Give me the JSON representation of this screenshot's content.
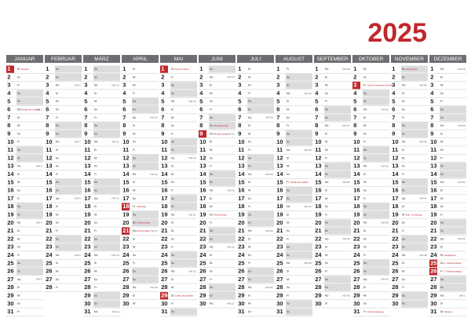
{
  "year": "2025",
  "weekend": [
    "Sa",
    "So"
  ],
  "months": [
    {
      "name": "JANUAR",
      "days": [
        1,
        2,
        3,
        4,
        5,
        6,
        7,
        8,
        9,
        10,
        11,
        12,
        13,
        14,
        15,
        16,
        17,
        18,
        19,
        20,
        21,
        22,
        23,
        24,
        25,
        26,
        27,
        28,
        29,
        30,
        31
      ],
      "weekdays": [
        "Mi",
        "Do",
        "Fr",
        "Sa",
        "So",
        "Mo",
        "Di",
        "Mi",
        "Do",
        "Fr",
        "Sa",
        "So",
        "Mo",
        "Di",
        "Mi",
        "Do",
        "Fr",
        "Sa",
        "So",
        "Mo",
        "Di",
        "Mi",
        "Do",
        "Fr",
        "Sa",
        "So",
        "Mo",
        "Di",
        "Mi",
        "Do",
        "Fr"
      ],
      "weeks": {
        "6": "KW 2",
        "13": "KW 3",
        "20": "KW 4",
        "27": "KW 5"
      },
      "notes": {
        "1": "Neujahr",
        "6": "Heilige Drei Könige"
      },
      "red": [
        1
      ]
    },
    {
      "name": "FEBRUAR",
      "days": [
        1,
        2,
        3,
        4,
        5,
        6,
        7,
        8,
        9,
        10,
        11,
        12,
        13,
        14,
        15,
        16,
        17,
        18,
        19,
        20,
        21,
        22,
        23,
        24,
        25,
        26,
        27,
        28
      ],
      "weekdays": [
        "Sa",
        "So",
        "Mo",
        "Di",
        "Mi",
        "Do",
        "Fr",
        "Sa",
        "So",
        "Mo",
        "Di",
        "Mi",
        "Do",
        "Fr",
        "Sa",
        "So",
        "Mo",
        "Di",
        "Mi",
        "Do",
        "Fr",
        "Sa",
        "So",
        "Mo",
        "Di",
        "Mi",
        "Do",
        "Fr"
      ],
      "weeks": {
        "3": "KW 6",
        "10": "KW 7",
        "17": "KW 8",
        "24": "KW 9"
      },
      "notes": {},
      "red": []
    },
    {
      "name": "MÄRZ",
      "days": [
        1,
        2,
        3,
        4,
        5,
        6,
        7,
        8,
        9,
        10,
        11,
        12,
        13,
        14,
        15,
        16,
        17,
        18,
        19,
        20,
        21,
        22,
        23,
        24,
        25,
        26,
        27,
        28,
        29,
        30,
        31
      ],
      "weekdays": [
        "Sa",
        "So",
        "Mo",
        "Di",
        "Mi",
        "Do",
        "Fr",
        "Sa",
        "So",
        "Mo",
        "Di",
        "Mi",
        "Do",
        "Fr",
        "Sa",
        "So",
        "Mo",
        "Di",
        "Mi",
        "Do",
        "Fr",
        "Sa",
        "So",
        "Mo",
        "Di",
        "Mi",
        "Do",
        "Fr",
        "Sa",
        "So",
        "Mo"
      ],
      "weeks": {
        "3": "KW 10",
        "10": "KW 11",
        "17": "KW 12",
        "24": "KW 13",
        "31": "KW 14"
      },
      "notes": {},
      "red": []
    },
    {
      "name": "APRIL",
      "days": [
        1,
        2,
        3,
        4,
        5,
        6,
        7,
        8,
        9,
        10,
        11,
        12,
        13,
        14,
        15,
        16,
        17,
        18,
        19,
        20,
        21,
        22,
        23,
        24,
        25,
        26,
        27,
        28,
        29,
        30
      ],
      "weekdays": [
        "Di",
        "Mi",
        "Do",
        "Fr",
        "Sa",
        "So",
        "Mo",
        "Di",
        "Mi",
        "Do",
        "Fr",
        "Sa",
        "So",
        "Mo",
        "Di",
        "Mi",
        "Do",
        "Fr",
        "Sa",
        "So",
        "Mo",
        "Di",
        "Mi",
        "Do",
        "Fr",
        "Sa",
        "So",
        "Mo",
        "Di",
        "Mi"
      ],
      "weeks": {
        "7": "KW 15",
        "14": "KW 16",
        "21": "KW 17",
        "28": "KW 18"
      },
      "notes": {
        "18": "Karfreitag",
        "20": "Ostersonntag",
        "21": "Ostermontag"
      },
      "red": [
        18,
        21
      ]
    },
    {
      "name": "MAI",
      "days": [
        1,
        2,
        3,
        4,
        5,
        6,
        7,
        8,
        9,
        10,
        11,
        12,
        13,
        14,
        15,
        16,
        17,
        18,
        19,
        20,
        21,
        22,
        23,
        24,
        25,
        26,
        27,
        28,
        29,
        30,
        31
      ],
      "weekdays": [
        "Do",
        "Fr",
        "Sa",
        "So",
        "Mo",
        "Di",
        "Mi",
        "Do",
        "Fr",
        "Sa",
        "So",
        "Mo",
        "Di",
        "Mi",
        "Do",
        "Fr",
        "Sa",
        "So",
        "Mo",
        "Di",
        "Mi",
        "Do",
        "Fr",
        "Sa",
        "So",
        "Mo",
        "Di",
        "Mi",
        "Do",
        "Fr",
        "Sa"
      ],
      "weeks": {
        "5": "KW 19",
        "12": "KW 20",
        "19": "KW 21",
        "26": "KW 22"
      },
      "notes": {
        "1": "Tag der Arbeit",
        "29": "Christi Himmelfahrt"
      },
      "red": [
        1,
        29
      ]
    },
    {
      "name": "JUNI",
      "days": [
        1,
        2,
        3,
        4,
        5,
        6,
        7,
        8,
        9,
        10,
        11,
        12,
        13,
        14,
        15,
        16,
        17,
        18,
        19,
        20,
        21,
        22,
        23,
        24,
        25,
        26,
        27,
        28,
        29,
        30
      ],
      "weekdays": [
        "So",
        "Mo",
        "Di",
        "Mi",
        "Do",
        "Fr",
        "Sa",
        "So",
        "Mo",
        "Di",
        "Mi",
        "Do",
        "Fr",
        "Sa",
        "So",
        "Mo",
        "Di",
        "Mi",
        "Do",
        "Fr",
        "Sa",
        "So",
        "Mo",
        "Di",
        "Mi",
        "Do",
        "Fr",
        "Sa",
        "So",
        "Mo"
      ],
      "weeks": {
        "2": "KW 23",
        "9": "KW 24",
        "16": "KW 25",
        "23": "KW 26",
        "30": "KW 27"
      },
      "notes": {
        "8": "Pfingstsonntag",
        "9": "Pfingstmontag",
        "19": "Fronleichnam"
      },
      "red": [
        9
      ]
    },
    {
      "name": "JULI",
      "days": [
        1,
        2,
        3,
        4,
        5,
        6,
        7,
        8,
        9,
        10,
        11,
        12,
        13,
        14,
        15,
        16,
        17,
        18,
        19,
        20,
        21,
        22,
        23,
        24,
        25,
        26,
        27,
        28,
        29,
        30,
        31
      ],
      "weekdays": [
        "Di",
        "Mi",
        "Do",
        "Fr",
        "Sa",
        "So",
        "Mo",
        "Di",
        "Mi",
        "Do",
        "Fr",
        "Sa",
        "So",
        "Mo",
        "Di",
        "Mi",
        "Do",
        "Fr",
        "Sa",
        "So",
        "Mo",
        "Di",
        "Mi",
        "Do",
        "Fr",
        "Sa",
        "So",
        "Mo",
        "Di",
        "Mi",
        "Do"
      ],
      "weeks": {
        "7": "KW 28",
        "14": "KW 29",
        "21": "KW 30",
        "28": "KW 31"
      },
      "notes": {},
      "red": []
    },
    {
      "name": "AUGUST",
      "days": [
        1,
        2,
        3,
        4,
        5,
        6,
        7,
        8,
        9,
        10,
        11,
        12,
        13,
        14,
        15,
        16,
        17,
        18,
        19,
        20,
        21,
        22,
        23,
        24,
        25,
        26,
        27,
        28,
        29,
        30,
        31
      ],
      "weekdays": [
        "Fr",
        "Sa",
        "So",
        "Mo",
        "Di",
        "Mi",
        "Do",
        "Fr",
        "Sa",
        "So",
        "Mo",
        "Di",
        "Mi",
        "Do",
        "Fr",
        "Sa",
        "So",
        "Mo",
        "Di",
        "Mi",
        "Do",
        "Fr",
        "Sa",
        "So",
        "Mo",
        "Di",
        "Mi",
        "Do",
        "Fr",
        "Sa",
        "So"
      ],
      "weeks": {
        "4": "KW 32",
        "11": "KW 33",
        "18": "KW 34",
        "25": "KW 35"
      },
      "notes": {
        "15": "Mariä Himmelfahrt"
      },
      "red": []
    },
    {
      "name": "SEPTEMBER",
      "days": [
        1,
        2,
        3,
        4,
        5,
        6,
        7,
        8,
        9,
        10,
        11,
        12,
        13,
        14,
        15,
        16,
        17,
        18,
        19,
        20,
        21,
        22,
        23,
        24,
        25,
        26,
        27,
        28,
        29,
        30
      ],
      "weekdays": [
        "Mo",
        "Di",
        "Mi",
        "Do",
        "Fr",
        "Sa",
        "So",
        "Mo",
        "Di",
        "Mi",
        "Do",
        "Fr",
        "Sa",
        "So",
        "Mo",
        "Di",
        "Mi",
        "Do",
        "Fr",
        "Sa",
        "So",
        "Mo",
        "Di",
        "Mi",
        "Do",
        "Fr",
        "Sa",
        "So",
        "Mo",
        "Di"
      ],
      "weeks": {
        "1": "KW 36",
        "8": "KW 37",
        "15": "KW 38",
        "22": "KW 39",
        "29": "KW 40"
      },
      "notes": {},
      "red": []
    },
    {
      "name": "OKTOBER",
      "days": [
        1,
        2,
        3,
        4,
        5,
        6,
        7,
        8,
        9,
        10,
        11,
        12,
        13,
        14,
        15,
        16,
        17,
        18,
        19,
        20,
        21,
        22,
        23,
        24,
        25,
        26,
        27,
        28,
        29,
        30,
        31
      ],
      "weekdays": [
        "Mi",
        "Do",
        "Fr",
        "Sa",
        "So",
        "Mo",
        "Di",
        "Mi",
        "Do",
        "Fr",
        "Sa",
        "So",
        "Mo",
        "Di",
        "Mi",
        "Do",
        "Fr",
        "Sa",
        "So",
        "Mo",
        "Di",
        "Mi",
        "Do",
        "Fr",
        "Sa",
        "So",
        "Mo",
        "Di",
        "Mi",
        "Do",
        "Fr"
      ],
      "weeks": {
        "6": "KW 41",
        "13": "KW 42",
        "20": "KW 43",
        "27": "KW 44"
      },
      "notes": {
        "3": "Tag der Deutschen Einheit",
        "31": "Reformationstag"
      },
      "red": [
        3
      ]
    },
    {
      "name": "NOVEMBER",
      "days": [
        1,
        2,
        3,
        4,
        5,
        6,
        7,
        8,
        9,
        10,
        11,
        12,
        13,
        14,
        15,
        16,
        17,
        18,
        19,
        20,
        21,
        22,
        23,
        24,
        25,
        26,
        27,
        28,
        29,
        30
      ],
      "weekdays": [
        "Sa",
        "So",
        "Mo",
        "Di",
        "Mi",
        "Do",
        "Fr",
        "Sa",
        "So",
        "Mo",
        "Di",
        "Mi",
        "Do",
        "Fr",
        "Sa",
        "So",
        "Mo",
        "Di",
        "Mi",
        "Do",
        "Fr",
        "Sa",
        "So",
        "Mo",
        "Di",
        "Mi",
        "Do",
        "Fr",
        "Sa",
        "So"
      ],
      "weeks": {
        "3": "KW 45",
        "10": "KW 46",
        "17": "KW 47",
        "24": "KW 48"
      },
      "notes": {
        "1": "Allerheiligen",
        "19": "Buß- und Bettag"
      },
      "red": []
    },
    {
      "name": "DEZEMBER",
      "days": [
        1,
        2,
        3,
        4,
        5,
        6,
        7,
        8,
        9,
        10,
        11,
        12,
        13,
        14,
        15,
        16,
        17,
        18,
        19,
        20,
        21,
        22,
        23,
        24,
        25,
        26,
        27,
        28,
        29,
        30,
        31
      ],
      "weekdays": [
        "Mo",
        "Di",
        "Mi",
        "Do",
        "Fr",
        "Sa",
        "So",
        "Mo",
        "Di",
        "Mi",
        "Do",
        "Fr",
        "Sa",
        "So",
        "Mo",
        "Di",
        "Mi",
        "Do",
        "Fr",
        "Sa",
        "So",
        "Mo",
        "Di",
        "Mi",
        "Do",
        "Fr",
        "Sa",
        "So",
        "Mo",
        "Di",
        "Mi"
      ],
      "weeks": {
        "1": "KW 49",
        "8": "KW 50",
        "15": "KW 51",
        "22": "KW 52",
        "29": "KW 1"
      },
      "notes": {
        "24": "Heiligabend",
        "25": "1. Weihnachtstag",
        "26": "2. Weihnachtstag",
        "31": "Silvester"
      },
      "red": [
        25,
        26
      ]
    }
  ]
}
